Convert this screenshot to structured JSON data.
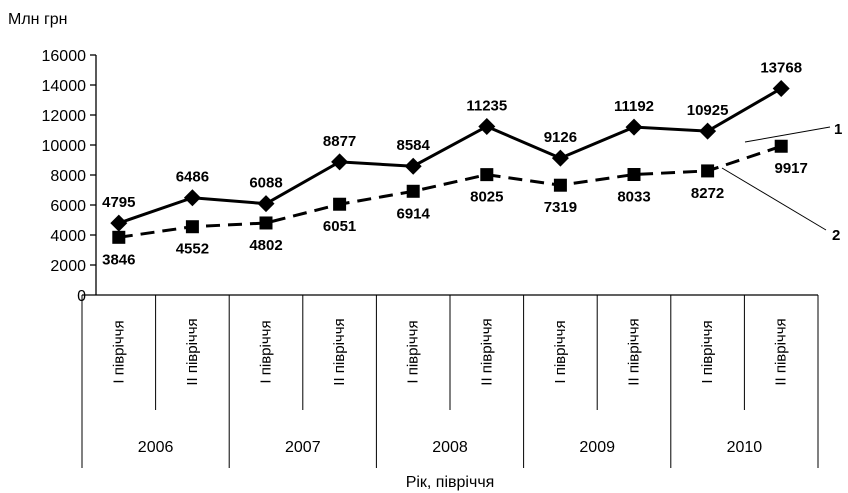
{
  "chart_data": {
    "type": "line",
    "ylabel": "Млн грн",
    "xlabel": "Рік, півріччя",
    "ylim": [
      0,
      16000
    ],
    "yticks": [
      0,
      2000,
      4000,
      6000,
      8000,
      10000,
      12000,
      14000,
      16000
    ],
    "categories": [
      "І півріччя",
      "ІІ півріччя",
      "І півріччя",
      "ІІ півріччя",
      "І півріччя",
      "ІІ півріччя",
      "І півріччя",
      "ІІ півріччя",
      "І півріччя",
      "ІІ півріччя"
    ],
    "years": [
      "2006",
      "2007",
      "2008",
      "2009",
      "2010"
    ],
    "grid": false,
    "series": [
      {
        "name": "1",
        "marker": "diamond",
        "line": "solid",
        "values": [
          4795,
          6486,
          6088,
          8877,
          8584,
          11235,
          9126,
          11192,
          10925,
          13768
        ]
      },
      {
        "name": "2",
        "marker": "square",
        "line": "dashed",
        "values": [
          3846,
          4552,
          4802,
          6051,
          6914,
          8025,
          7319,
          8033,
          8272,
          9917
        ]
      }
    ]
  }
}
